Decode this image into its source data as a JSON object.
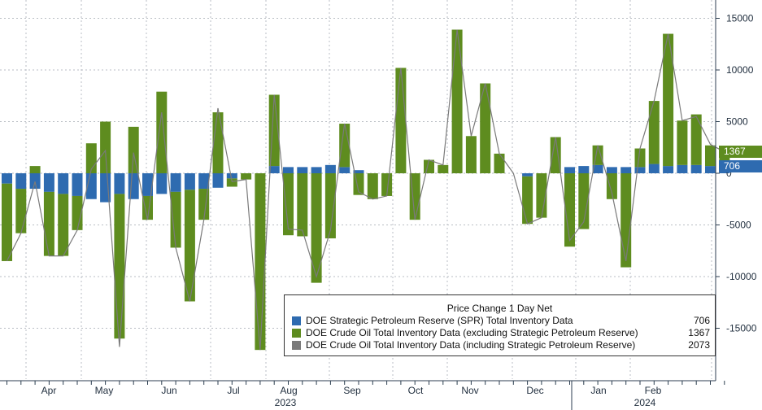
{
  "chart_data": {
    "type": "bar",
    "title": "Price Change 1 Day Net",
    "grid": true,
    "legend_position": "bottom-right",
    "ylim": [
      -20000,
      16000
    ],
    "y_ticks": [
      15000,
      10000,
      5000,
      0,
      -5000,
      -10000,
      -15000
    ],
    "y_tick_labels": [
      "15000",
      "10000",
      "5000",
      "0",
      "-5000",
      "-10000",
      "-15000"
    ],
    "x_month_labels": [
      "Apr",
      "May",
      "Jun",
      "Jul",
      "Aug",
      "Sep",
      "Oct",
      "Nov",
      "Dec",
      "Jan",
      "Feb"
    ],
    "x_year_labels": [
      "2023",
      "2024"
    ],
    "series": [
      {
        "name": "DOE Strategic Petroleum Reserve (SPR) Total Inventory Data",
        "color": "#2e6bb0",
        "last_value": 706,
        "values": [
          -1000,
          -1500,
          -1500,
          -1800,
          -2000,
          -2200,
          -2500,
          -2800,
          -2000,
          -2500,
          -2200,
          -2000,
          -1800,
          -1600,
          -1500,
          -1400,
          -500,
          0,
          0,
          700,
          600,
          600,
          600,
          800,
          600,
          300,
          0,
          0,
          0,
          0,
          0,
          0,
          0,
          0,
          0,
          0,
          0,
          -300,
          0,
          0,
          600,
          700,
          800,
          600,
          600,
          600,
          900,
          700,
          800,
          800,
          700,
          706
        ]
      },
      {
        "name": "DOE Crude Oil Total Inventory Data (excluding Strategic Petroleum Reserve)",
        "color": "#5e8c1f",
        "last_value": 1367,
        "values": [
          -7500,
          -4300,
          700,
          -6200,
          -6000,
          -3300,
          2900,
          5000,
          -14000,
          4500,
          -2300,
          7900,
          -5400,
          -10800,
          -3000,
          5900,
          -800,
          -600,
          -17100,
          6900,
          -6000,
          -6100,
          -10600,
          -6300,
          4200,
          -2100,
          -2500,
          -2200,
          10200,
          -4500,
          1300,
          800,
          13900,
          3600,
          8700,
          1900,
          0,
          -4600,
          -4300,
          3500,
          -7100,
          -5400,
          1900,
          -2500,
          -9100,
          1800,
          6100,
          12800,
          4300,
          4900,
          2000,
          1367
        ]
      },
      {
        "name": "DOE Crude Oil Total Inventory Data (including Strategic Petroleum Reserve)",
        "color": "#7a7a7a",
        "last_value": 2073,
        "values": [
          -8500,
          -5800,
          -800,
          -8000,
          -8000,
          -5500,
          400,
          2200,
          -16800,
          2000,
          -4500,
          5900,
          -7200,
          -12400,
          -4500,
          6300,
          -800,
          -600,
          -17100,
          7600,
          -5400,
          -5500,
          -10000,
          -5500,
          4800,
          -1800,
          -2500,
          -2200,
          10200,
          -4500,
          1300,
          800,
          13900,
          3600,
          8700,
          1900,
          0,
          -4900,
          -4300,
          3500,
          -6500,
          -4700,
          2700,
          -1900,
          -8500,
          2400,
          7000,
          13500,
          5100,
          5500,
          2800,
          2073
        ]
      }
    ],
    "badges": [
      {
        "text": "1367",
        "color": "#5e8c1f"
      },
      {
        "text": "706",
        "color": "#2e6bb0"
      }
    ]
  }
}
